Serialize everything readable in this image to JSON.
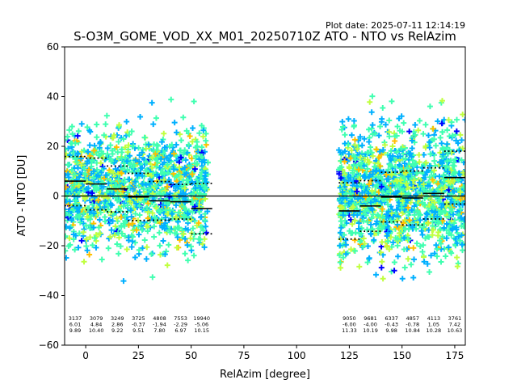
{
  "chart_data": {
    "type": "scatter",
    "plot_date": "Plot date: 2025-07-11 12:14:19",
    "title": "S-O3M_GOME_VOD_XX_M01_20250710Z ATO - NTO vs RelAzim",
    "xlabel": "RelAzim [degree]",
    "ylabel": "ATO - NTO [DU]",
    "xlim": [
      -10,
      180
    ],
    "ylim": [
      -60,
      60
    ],
    "xticks": [
      0,
      25,
      50,
      75,
      100,
      125,
      150,
      175
    ],
    "yticks": [
      -60,
      -40,
      -20,
      0,
      20,
      40,
      60
    ],
    "zero_line": 0,
    "marker": "+",
    "colormap": [
      "#0000ff",
      "#00b0ff",
      "#40ffb0",
      "#c0ff40",
      "#ffc000"
    ],
    "point_clusters": [
      {
        "x_range": [
          -10,
          58
        ],
        "y_center": 3,
        "y_spread": 28
      },
      {
        "x_range": [
          120,
          180
        ],
        "y_center": 2,
        "y_spread": 32
      }
    ],
    "bins": [
      {
        "x_range": [
          -10,
          0
        ],
        "count": "3137",
        "mean": "6.01",
        "std": "9.89",
        "mean_val": 6.01,
        "std_val": 9.89
      },
      {
        "x_range": [
          0,
          10
        ],
        "count": "3079",
        "mean": "4.84",
        "std": "10.40",
        "mean_val": 4.84,
        "std_val": 10.4
      },
      {
        "x_range": [
          10,
          20
        ],
        "count": "3249",
        "mean": "2.86",
        "std": "9.22",
        "mean_val": 2.86,
        "std_val": 9.22
      },
      {
        "x_range": [
          20,
          30
        ],
        "count": "3725",
        "mean": "-0.37",
        "std": "9.51",
        "mean_val": -0.37,
        "std_val": 9.51
      },
      {
        "x_range": [
          30,
          40
        ],
        "count": "4808",
        "mean": "-1.94",
        "std": "7.80",
        "mean_val": -1.94,
        "std_val": 7.8
      },
      {
        "x_range": [
          40,
          50
        ],
        "count": "7553",
        "mean": "-2.29",
        "std": "6.97",
        "mean_val": -2.29,
        "std_val": 6.97
      },
      {
        "x_range": [
          50,
          60
        ],
        "count": "19940",
        "mean": "-5.06",
        "std": "10.15",
        "mean_val": -5.06,
        "std_val": 10.15
      },
      {
        "x_range": [
          120,
          130
        ],
        "count": "9050",
        "mean": "-6.00",
        "std": "11.33",
        "mean_val": -6.0,
        "std_val": 11.33
      },
      {
        "x_range": [
          130,
          140
        ],
        "count": "9681",
        "mean": "-4.00",
        "std": "10.19",
        "mean_val": -4.0,
        "std_val": 10.19
      },
      {
        "x_range": [
          140,
          150
        ],
        "count": "6337",
        "mean": "-0.43",
        "std": "9.98",
        "mean_val": -0.43,
        "std_val": 9.98
      },
      {
        "x_range": [
          150,
          160
        ],
        "count": "4857",
        "mean": "-0.78",
        "std": "10.84",
        "mean_val": -0.78,
        "std_val": 10.84
      },
      {
        "x_range": [
          160,
          170
        ],
        "count": "4113",
        "mean": "1.05",
        "std": "10.28",
        "mean_val": 1.05,
        "std_val": 10.28
      },
      {
        "x_range": [
          170,
          180
        ],
        "count": "3761",
        "mean": "7.42",
        "std": "10.63",
        "mean_val": 7.42,
        "std_val": 10.63
      }
    ]
  }
}
